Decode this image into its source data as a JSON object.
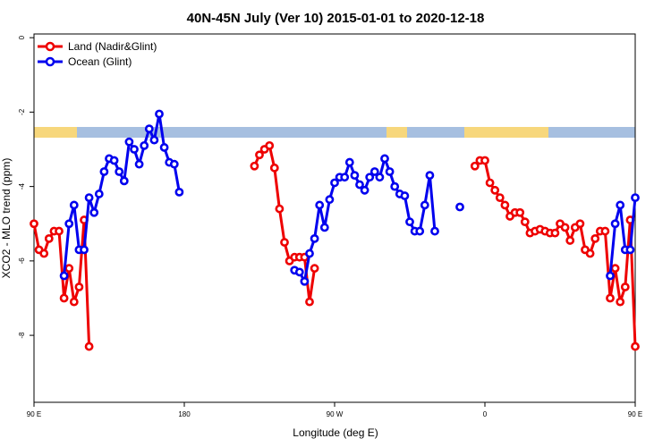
{
  "chart_data": {
    "type": "line",
    "title": "40N-45N July (Ver 10)   2015-01-01 to 2020-12-18",
    "xlabel": "Longitude (deg E)",
    "ylabel": "XCO2 - MLO trend (ppm)",
    "xlim": [
      90,
      450
    ],
    "ylim": [
      -9.8,
      0.1
    ],
    "x_ticks": [
      {
        "value": 90,
        "label": "90 E"
      },
      {
        "value": 180,
        "label": "180"
      },
      {
        "value": 270,
        "label": "90 W"
      },
      {
        "value": 360,
        "label": "0"
      },
      {
        "value": 450,
        "label": "90 E"
      },
      {
        "value": 540,
        "label": "180"
      }
    ],
    "y_ticks": [
      0,
      -2,
      -4,
      -6,
      -8
    ],
    "legend_position": "top-left",
    "legend": [
      "Land (Nadir&Glint)",
      "Ocean (Glint)"
    ],
    "colors": {
      "land": "#ee0000",
      "ocean": "#0000ee",
      "strip_land": "#f7d77c",
      "strip_ocean": "#a6bfe0"
    },
    "series": [
      {
        "name": "Land (Nadir&Glint)",
        "color": "#ee0000",
        "segments": [
          [
            [
              90,
              -5.0
            ],
            [
              93,
              -5.7
            ],
            [
              96,
              -5.8
            ],
            [
              99,
              -5.4
            ],
            [
              102,
              -5.2
            ],
            [
              105,
              -5.2
            ],
            [
              108,
              -7.0
            ],
            [
              111,
              -6.2
            ],
            [
              114,
              -7.1
            ],
            [
              117,
              -6.7
            ],
            [
              120,
              -4.9
            ],
            [
              123,
              -8.3
            ]
          ],
          [
            [
              222,
              -3.45
            ],
            [
              225,
              -3.15
            ],
            [
              228,
              -3.0
            ],
            [
              231,
              -2.9
            ],
            [
              234,
              -3.5
            ],
            [
              237,
              -4.6
            ],
            [
              240,
              -5.5
            ],
            [
              243,
              -6.0
            ],
            [
              246,
              -5.9
            ],
            [
              249,
              -5.9
            ],
            [
              252,
              -5.9
            ],
            [
              255,
              -7.1
            ],
            [
              258,
              -6.2
            ]
          ],
          [
            [
              354,
              -3.45
            ],
            [
              357,
              -3.3
            ],
            [
              360,
              -3.3
            ],
            [
              363,
              -3.9
            ],
            [
              366,
              -4.1
            ],
            [
              369,
              -4.3
            ],
            [
              372,
              -4.5
            ],
            [
              375,
              -4.8
            ],
            [
              378,
              -4.7
            ],
            [
              381,
              -4.7
            ],
            [
              384,
              -4.95
            ],
            [
              387,
              -5.25
            ],
            [
              390,
              -5.2
            ],
            [
              393,
              -5.15
            ],
            [
              396,
              -5.2
            ],
            [
              399,
              -5.25
            ],
            [
              402,
              -5.25
            ],
            [
              405,
              -5.0
            ],
            [
              408,
              -5.1
            ],
            [
              411,
              -5.45
            ],
            [
              414,
              -5.1
            ],
            [
              417,
              -5.0
            ],
            [
              420,
              -5.7
            ],
            [
              423,
              -5.8
            ],
            [
              426,
              -5.4
            ],
            [
              429,
              -5.2
            ],
            [
              432,
              -5.2
            ],
            [
              435,
              -7.0
            ],
            [
              438,
              -6.2
            ],
            [
              441,
              -7.1
            ],
            [
              444,
              -6.7
            ],
            [
              447,
              -4.9
            ],
            [
              450,
              -8.3
            ]
          ]
        ]
      },
      {
        "name": "Ocean (Glint)",
        "color": "#0000ee",
        "segments": [
          [
            [
              108,
              -6.4
            ],
            [
              111,
              -5.0
            ],
            [
              114,
              -4.5
            ],
            [
              117,
              -5.7
            ],
            [
              120,
              -5.7
            ],
            [
              123,
              -4.3
            ],
            [
              126,
              -4.7
            ],
            [
              129,
              -4.2
            ],
            [
              132,
              -3.6
            ],
            [
              135,
              -3.25
            ],
            [
              138,
              -3.3
            ],
            [
              141,
              -3.6
            ],
            [
              144,
              -3.85
            ],
            [
              147,
              -2.8
            ],
            [
              150,
              -3.0
            ],
            [
              153,
              -3.4
            ],
            [
              156,
              -2.9
            ],
            [
              159,
              -2.45
            ],
            [
              162,
              -2.75
            ],
            [
              165,
              -2.05
            ],
            [
              168,
              -2.95
            ],
            [
              171,
              -3.35
            ],
            [
              174,
              -3.4
            ],
            [
              177,
              -4.15
            ]
          ],
          [
            [
              246,
              -6.25
            ],
            [
              249,
              -6.3
            ],
            [
              252,
              -6.55
            ],
            [
              255,
              -5.8
            ],
            [
              258,
              -5.4
            ],
            [
              261,
              -4.5
            ],
            [
              264,
              -5.1
            ],
            [
              267,
              -4.35
            ],
            [
              270,
              -3.9
            ],
            [
              273,
              -3.75
            ],
            [
              276,
              -3.75
            ],
            [
              279,
              -3.35
            ],
            [
              282,
              -3.7
            ],
            [
              285,
              -3.95
            ],
            [
              288,
              -4.1
            ],
            [
              291,
              -3.75
            ],
            [
              294,
              -3.6
            ],
            [
              297,
              -3.75
            ],
            [
              300,
              -3.25
            ],
            [
              303,
              -3.6
            ],
            [
              306,
              -4.0
            ],
            [
              309,
              -4.2
            ],
            [
              312,
              -4.25
            ],
            [
              315,
              -4.95
            ],
            [
              318,
              -5.2
            ],
            [
              321,
              -5.2
            ],
            [
              324,
              -4.5
            ],
            [
              327,
              -3.7
            ],
            [
              330,
              -5.2
            ]
          ],
          [
            [
              345,
              -4.55
            ]
          ],
          [
            [
              435,
              -6.4
            ],
            [
              438,
              -5.0
            ],
            [
              441,
              -4.5
            ],
            [
              444,
              -5.7
            ],
            [
              447,
              -5.7
            ],
            [
              450,
              -4.3
            ]
          ]
        ]
      }
    ]
  }
}
